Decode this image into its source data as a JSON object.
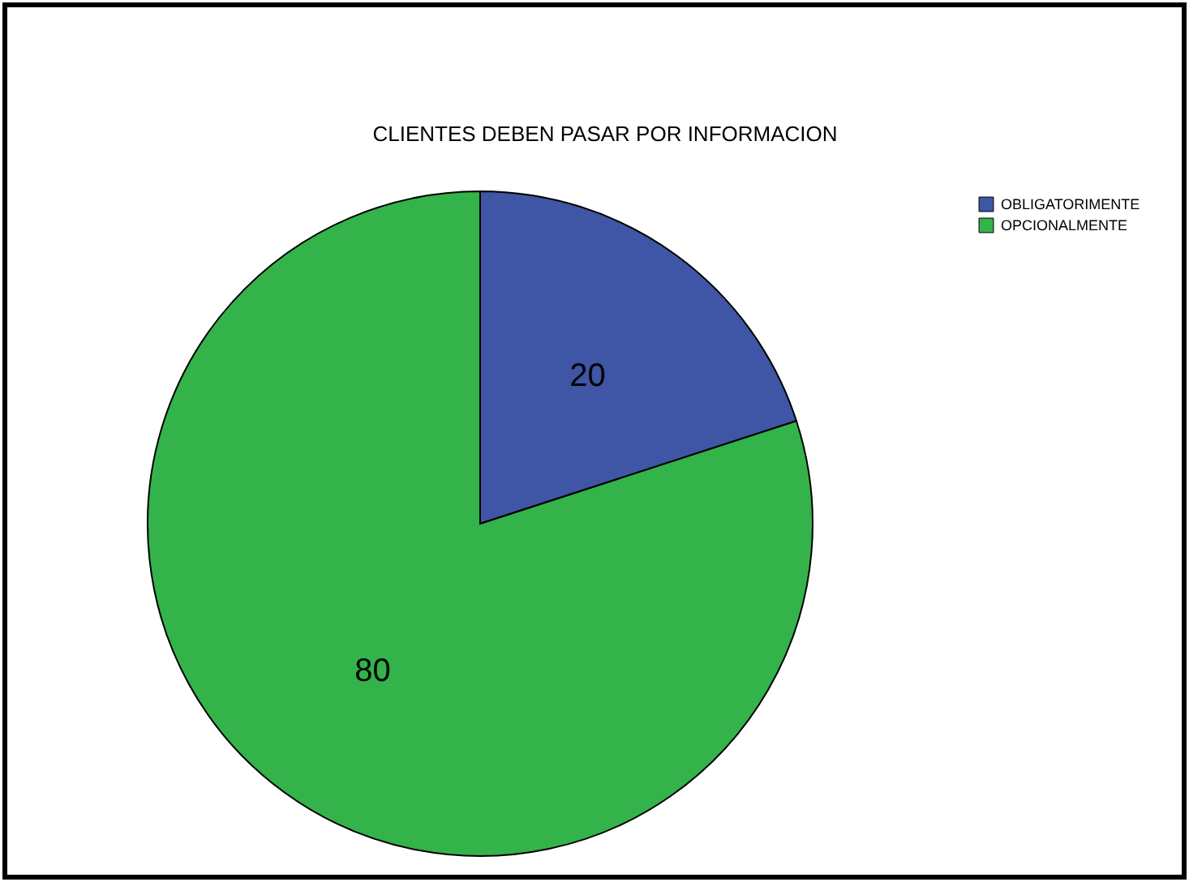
{
  "chart_data": {
    "type": "pie",
    "title": "CLIENTES DEBEN PASAR POR INFORMACION",
    "categories": [
      "OBLIGATORIMENTE",
      "OPCIONALMENTE"
    ],
    "values": [
      20,
      80
    ],
    "colors": [
      "#3f55a5",
      "#33b34a"
    ],
    "data_labels": true,
    "legend": "top right"
  }
}
